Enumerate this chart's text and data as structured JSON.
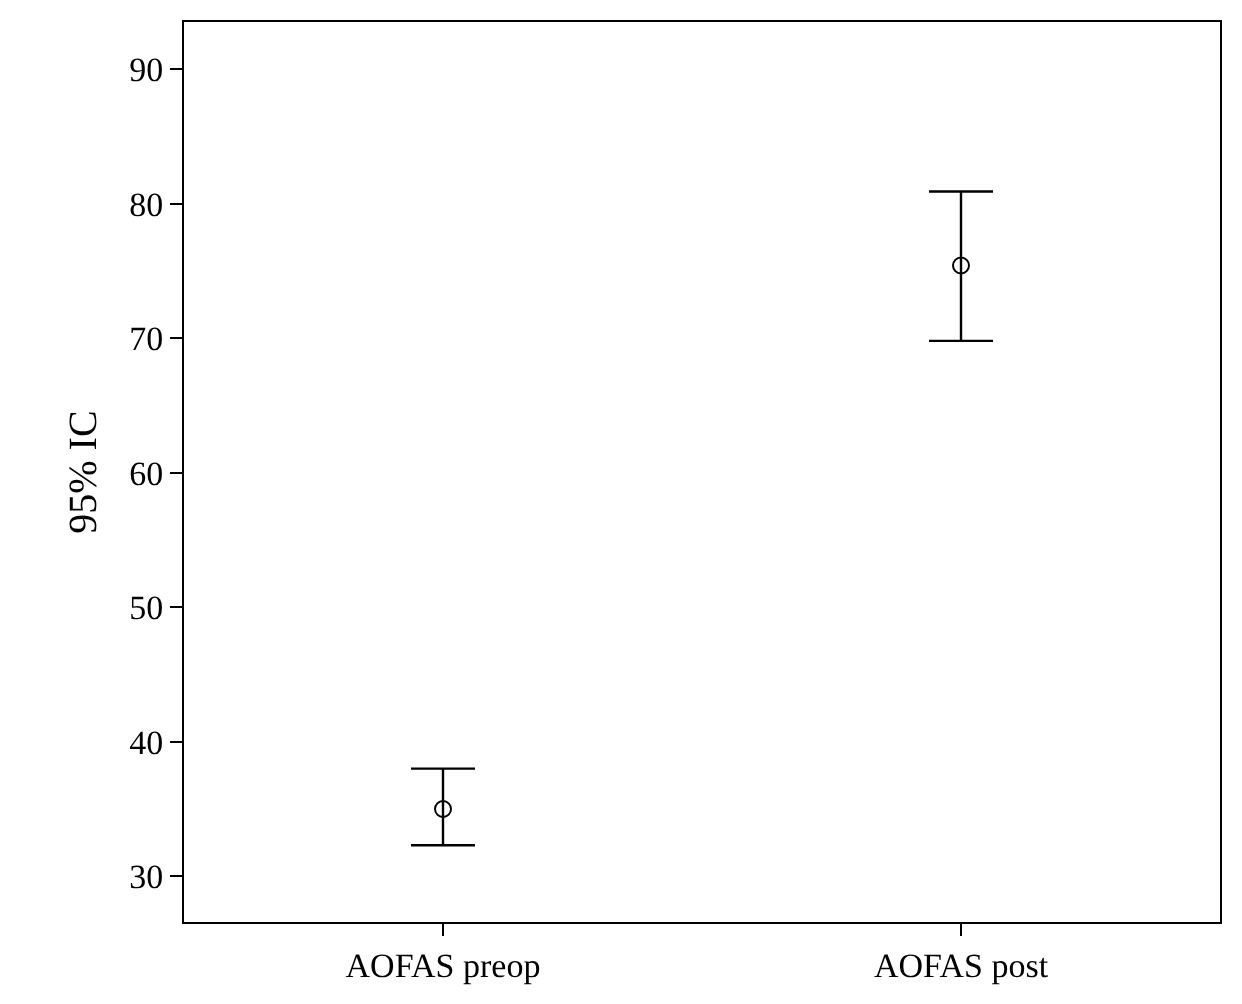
{
  "chart_data": {
    "type": "scatter",
    "ylabel": "95% IC",
    "categories": [
      "AOFAS preop",
      "AOFAS post"
    ],
    "values": [
      35.0,
      75.4
    ],
    "errors": [
      [
        32.3,
        38.0
      ],
      [
        69.8,
        80.9
      ]
    ],
    "color": "#000000",
    "marker": "circle",
    "ylim": [
      26.6,
      93.5
    ],
    "yticks": [
      30,
      40,
      50,
      60,
      70,
      80,
      90
    ],
    "legend": false
  }
}
